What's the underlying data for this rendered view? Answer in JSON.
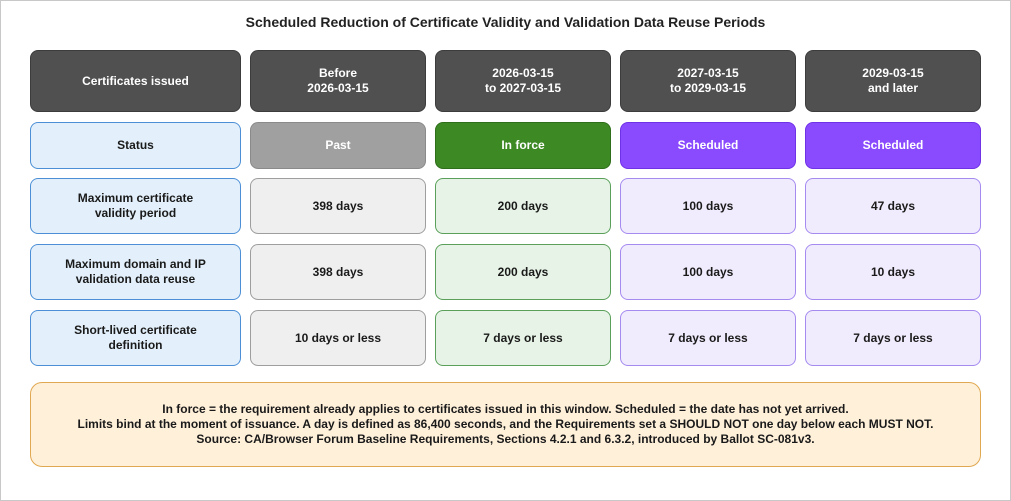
{
  "title": "Scheduled Reduction of Certificate Validity and Validation Data Reuse Periods",
  "colors": {
    "header_bg": "#505050",
    "label_bg": "#e3f0fb",
    "label_border": "#4d8fd6",
    "past_status": "#a0a0a0",
    "in_force_status": "#3d8a24",
    "scheduled_status": "#8a4bff",
    "note_bg": "#fff0da",
    "note_border": "#e0a850"
  },
  "header": {
    "row_label": "Certificates issued",
    "columns": [
      "Before\n2026-03-15",
      "2026-03-15\nto 2027-03-15",
      "2027-03-15\nto 2029-03-15",
      "2029-03-15\nand later"
    ]
  },
  "rows": [
    {
      "label": "Status",
      "values": [
        "Past",
        "In force",
        "Scheduled",
        "Scheduled"
      ]
    },
    {
      "label": "Maximum certificate\nvalidity period",
      "values": [
        "398 days",
        "200 days",
        "100 days",
        "47 days"
      ]
    },
    {
      "label": "Maximum domain and IP\nvalidation data reuse",
      "values": [
        "398 days",
        "200 days",
        "100 days",
        "10 days"
      ]
    },
    {
      "label": "Short-lived certificate\ndefinition",
      "values": [
        "10 days or less",
        "7 days or less",
        "7 days or less",
        "7 days or less"
      ]
    }
  ],
  "note": {
    "line1": "In force = the requirement already applies to certificates issued in this window. Scheduled = the date has not yet arrived.",
    "line2": "Limits bind at the moment of issuance. A day is defined as 86,400 seconds, and the Requirements set a SHOULD NOT one day below each MUST NOT.",
    "line3": "Source: CA/Browser Forum Baseline Requirements, Sections 4.2.1 and 6.3.2, introduced by Ballot SC-081v3."
  }
}
